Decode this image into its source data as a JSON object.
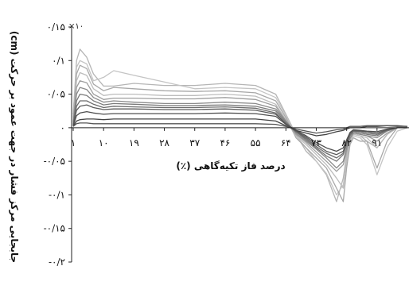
{
  "chart_data": {
    "type": "line",
    "xlabel": "درصد فاز تکیه‌گاهی (٪)",
    "ylabel": "جابجایی مرکز فشار در جهت عمود بر حرکت (cm)",
    "y_multiplier": "×۱۰",
    "x_tick_labels": [
      "۱",
      "۱۰",
      "۱۹",
      "۲۸",
      "۳۷",
      "۴۶",
      "۵۵",
      "۶۴",
      "۷۳",
      "۸۲",
      "۹۱"
    ],
    "x_ticks": [
      1,
      10,
      19,
      28,
      37,
      46,
      55,
      64,
      73,
      82,
      91
    ],
    "y_tick_labels": [
      "۰/۱۵",
      "۰/۱",
      "۰/۰۵",
      "۰",
      "-۰/۰۵",
      "-۰/۱",
      "-۰/۱۵",
      "-۰/۲"
    ],
    "y_ticks": [
      0.15,
      0.1,
      0.05,
      0,
      -0.05,
      -0.1,
      -0.15,
      -0.2
    ],
    "xlim": [
      1,
      100
    ],
    "ylim": [
      -0.2,
      0.15
    ],
    "x": [
      1,
      2,
      3,
      5,
      7,
      10,
      13,
      19,
      28,
      37,
      46,
      55,
      61,
      64,
      67,
      70,
      73,
      76,
      79,
      81,
      82,
      83,
      84,
      86,
      88,
      91,
      94,
      97,
      100
    ],
    "series": [
      {
        "values": [
          0.02,
          0.1,
          0.117,
          0.105,
          0.08,
          0.062,
          0.062,
          0.066,
          0.063,
          0.063,
          0.066,
          0.063,
          0.05,
          0.02,
          -0.01,
          -0.035,
          -0.05,
          -0.07,
          -0.11,
          -0.075,
          -0.04,
          -0.018,
          -0.01,
          -0.012,
          -0.02,
          -0.03,
          -0.01,
          0.0,
          0.0
        ],
        "color": "#b5b5b5"
      },
      {
        "values": [
          0.02,
          0.09,
          0.1,
          0.095,
          0.07,
          0.075,
          0.085,
          0.078,
          0.068,
          0.058,
          0.06,
          0.058,
          0.045,
          0.018,
          -0.012,
          -0.03,
          -0.05,
          -0.068,
          -0.1,
          -0.085,
          -0.05,
          -0.02,
          -0.012,
          -0.015,
          -0.025,
          -0.07,
          -0.03,
          -0.005,
          0.0
        ],
        "color": "#c4c4c4"
      },
      {
        "values": [
          0.015,
          0.08,
          0.093,
          0.088,
          0.065,
          0.055,
          0.06,
          0.058,
          0.055,
          0.054,
          0.055,
          0.052,
          0.04,
          0.015,
          -0.015,
          -0.03,
          -0.045,
          -0.06,
          -0.09,
          -0.11,
          -0.06,
          -0.025,
          -0.015,
          -0.02,
          -0.02,
          -0.06,
          -0.02,
          0.0,
          0.0
        ],
        "color": "#a8a8a8"
      },
      {
        "values": [
          0.01,
          0.07,
          0.082,
          0.078,
          0.058,
          0.048,
          0.05,
          0.05,
          0.048,
          0.048,
          0.05,
          0.047,
          0.035,
          0.012,
          -0.012,
          -0.025,
          -0.04,
          -0.055,
          -0.075,
          -0.09,
          -0.045,
          -0.02,
          -0.01,
          -0.012,
          -0.015,
          -0.03,
          -0.01,
          0.0,
          0.0
        ],
        "color": "#bdbdbd"
      },
      {
        "values": [
          0.01,
          0.06,
          0.07,
          0.067,
          0.05,
          0.042,
          0.044,
          0.044,
          0.043,
          0.043,
          0.045,
          0.042,
          0.032,
          0.01,
          -0.01,
          -0.022,
          -0.036,
          -0.05,
          -0.065,
          -0.055,
          -0.035,
          -0.016,
          -0.008,
          -0.01,
          -0.012,
          -0.02,
          -0.008,
          0.0,
          0.0
        ],
        "color": "#9e9e9e"
      },
      {
        "values": [
          0.008,
          0.05,
          0.06,
          0.057,
          0.045,
          0.038,
          0.04,
          0.038,
          0.036,
          0.036,
          0.038,
          0.036,
          0.028,
          0.01,
          -0.008,
          -0.02,
          -0.032,
          -0.045,
          -0.06,
          -0.05,
          -0.03,
          -0.015,
          -0.008,
          -0.01,
          -0.012,
          -0.015,
          -0.005,
          0.0,
          0.0
        ],
        "color": "#8a8a8a"
      },
      {
        "values": [
          0.006,
          0.04,
          0.05,
          0.048,
          0.04,
          0.034,
          0.036,
          0.035,
          0.033,
          0.033,
          0.034,
          0.032,
          0.025,
          0.008,
          -0.006,
          -0.018,
          -0.03,
          -0.042,
          -0.05,
          -0.04,
          -0.025,
          -0.012,
          -0.006,
          -0.008,
          -0.01,
          -0.012,
          -0.004,
          0.0,
          0.0
        ],
        "color": "#7a7a7a"
      },
      {
        "values": [
          0.005,
          0.032,
          0.04,
          0.04,
          0.035,
          0.03,
          0.032,
          0.031,
          0.03,
          0.03,
          0.031,
          0.029,
          0.022,
          0.006,
          -0.006,
          -0.016,
          -0.028,
          -0.038,
          -0.045,
          -0.038,
          -0.022,
          -0.01,
          -0.005,
          -0.006,
          -0.008,
          -0.01,
          -0.004,
          0.0,
          0.0
        ],
        "color": "#6b6b6b"
      },
      {
        "values": [
          0.004,
          0.026,
          0.032,
          0.034,
          0.03,
          0.027,
          0.028,
          0.028,
          0.027,
          0.027,
          0.028,
          0.026,
          0.02,
          0.006,
          -0.005,
          -0.014,
          -0.025,
          -0.035,
          -0.04,
          -0.035,
          -0.02,
          -0.008,
          -0.004,
          -0.005,
          -0.006,
          -0.008,
          -0.003,
          0.0,
          0.0
        ],
        "color": "#5c5c5c"
      },
      {
        "values": [
          0.003,
          0.018,
          0.022,
          0.024,
          0.022,
          0.02,
          0.021,
          0.021,
          0.021,
          0.021,
          0.022,
          0.021,
          0.017,
          0.005,
          -0.004,
          -0.012,
          -0.022,
          -0.03,
          -0.035,
          -0.03,
          -0.018,
          -0.007,
          -0.003,
          -0.004,
          -0.005,
          -0.006,
          -0.002,
          0.0,
          0.0
        ],
        "color": "#4f4f4f"
      },
      {
        "values": [
          0.002,
          0.01,
          0.012,
          0.013,
          0.013,
          0.012,
          0.013,
          0.013,
          0.013,
          0.013,
          0.013,
          0.013,
          0.01,
          0.003,
          -0.004,
          -0.008,
          -0.012,
          -0.01,
          -0.006,
          -0.004,
          -0.002,
          0.0,
          0.0,
          0.0,
          0.002,
          0.002,
          0.003,
          0.003,
          0.002
        ],
        "color": "#444444"
      },
      {
        "values": [
          0.002,
          0.006,
          0.007,
          0.007,
          0.006,
          0.006,
          0.006,
          0.006,
          0.006,
          0.006,
          0.006,
          0.006,
          0.005,
          0.002,
          -0.002,
          -0.005,
          -0.008,
          -0.006,
          -0.003,
          -0.002,
          0.0,
          0.002,
          0.002,
          0.002,
          0.003,
          0.003,
          0.003,
          0.002,
          0.002
        ],
        "color": "#555555"
      }
    ]
  }
}
